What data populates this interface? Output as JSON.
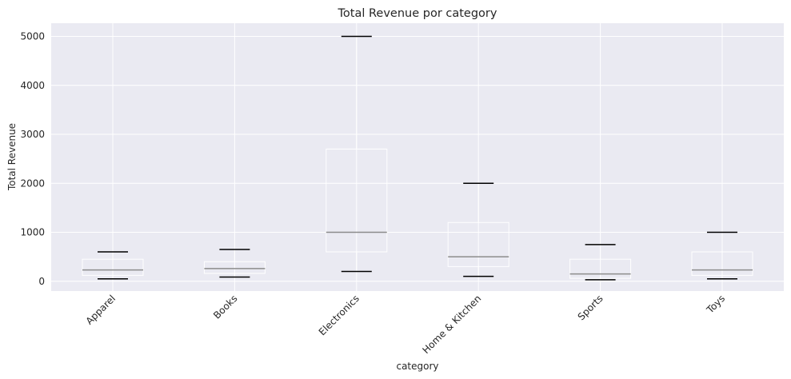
{
  "chart_data": {
    "type": "box",
    "title": "Total Revenue por category",
    "xlabel": "category",
    "ylabel": "Total Revenue",
    "ylim": [
      -200,
      5270
    ],
    "yticks": [
      0,
      1000,
      2000,
      3000,
      4000,
      5000
    ],
    "grid": true,
    "categories": [
      "Apparel",
      "Books",
      "Electronics",
      "Home & Kitchen",
      "Sports",
      "Toys"
    ],
    "boxes": [
      {
        "category": "Apparel",
        "whisker_low": 50,
        "q1": 120,
        "median": 230,
        "q3": 450,
        "whisker_high": 600
      },
      {
        "category": "Books",
        "whisker_low": 85,
        "q1": 160,
        "median": 260,
        "q3": 400,
        "whisker_high": 650
      },
      {
        "category": "Electronics",
        "whisker_low": 200,
        "q1": 600,
        "median": 1000,
        "q3": 2700,
        "whisker_high": 5000
      },
      {
        "category": "Home & Kitchen",
        "whisker_low": 100,
        "q1": 300,
        "median": 500,
        "q3": 1200,
        "whisker_high": 2000
      },
      {
        "category": "Sports",
        "whisker_low": 30,
        "q1": 60,
        "median": 150,
        "q3": 450,
        "whisker_high": 750
      },
      {
        "category": "Toys",
        "whisker_low": 50,
        "q1": 120,
        "median": 230,
        "q3": 600,
        "whisker_high": 1000
      }
    ],
    "colors": {
      "plot_bg": "#eaeaf2",
      "grid": "#ffffff",
      "box": "#ffffff",
      "median": "#8c8c8c",
      "cap": "#000000",
      "text": "#262626"
    }
  }
}
